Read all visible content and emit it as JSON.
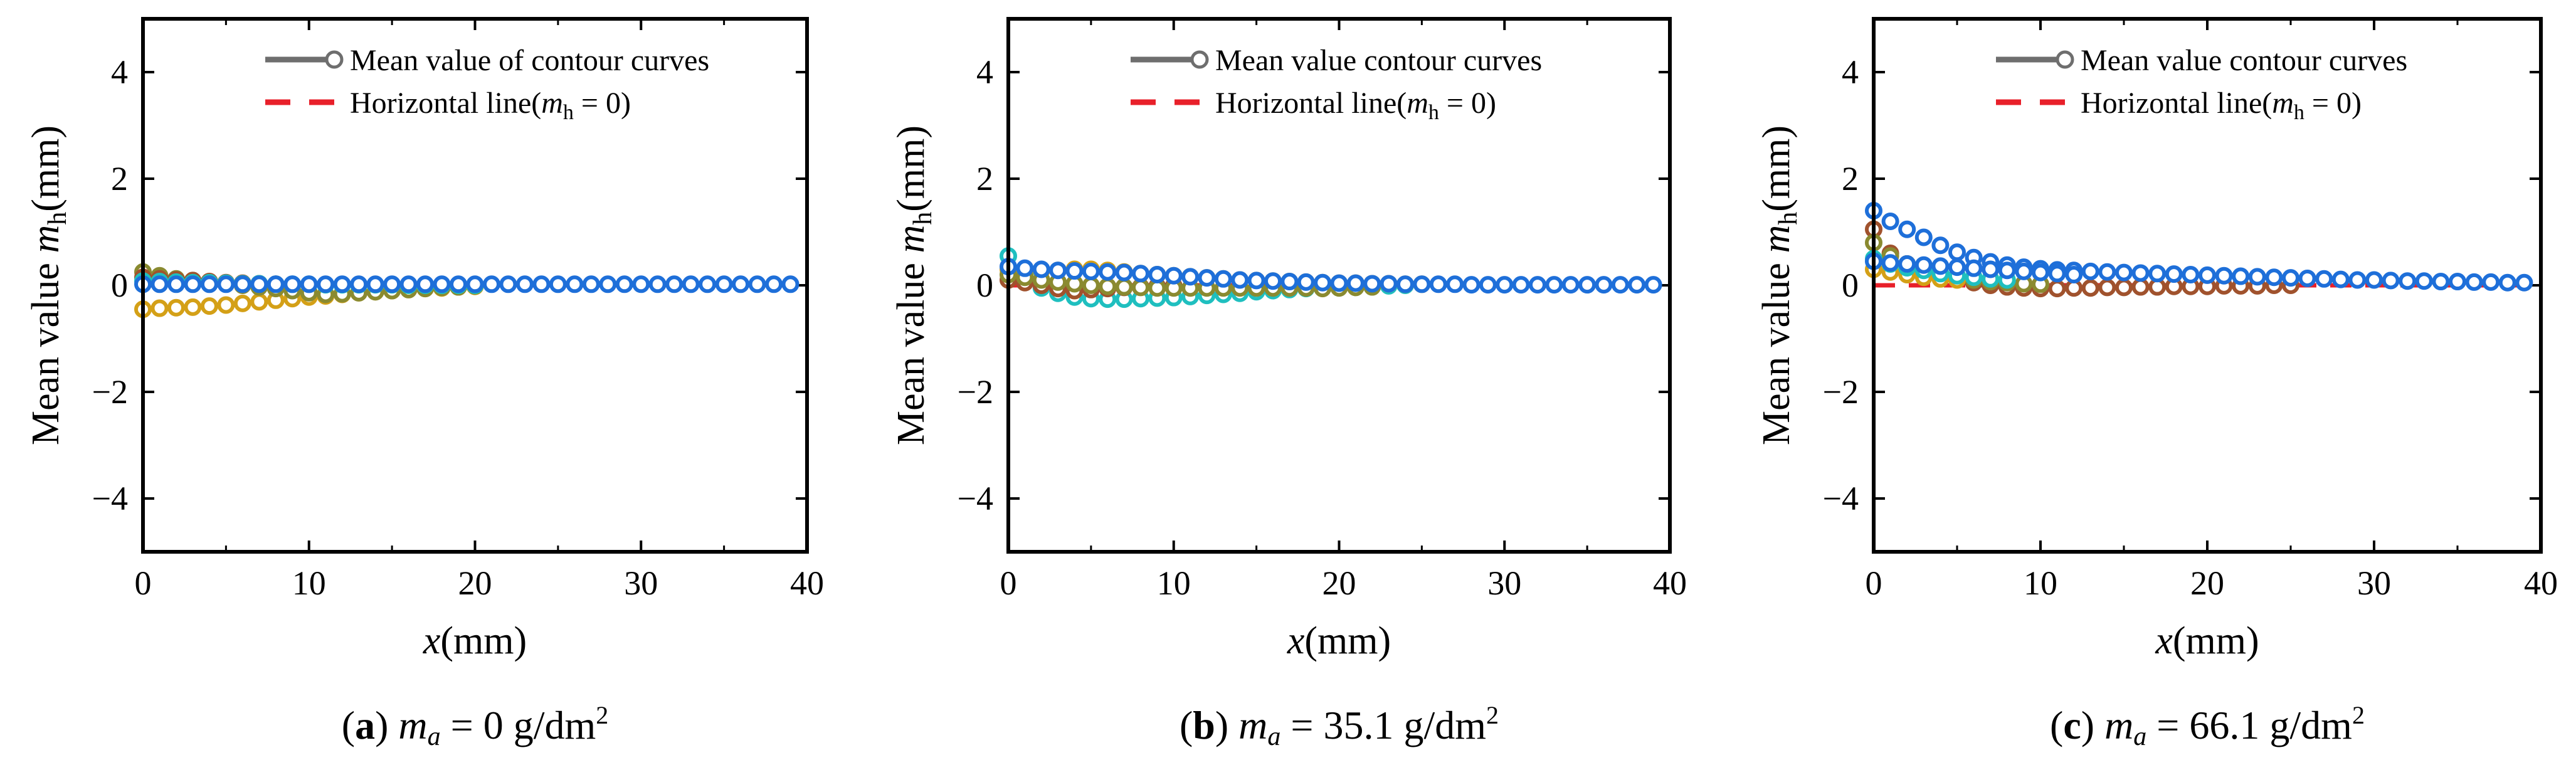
{
  "chart_data": [
    {
      "type": "scatter",
      "panel": "a",
      "caption": {
        "label": "a",
        "symbol": "m",
        "subscript": "a",
        "value": " = 0 g/dm",
        "sup": "2"
      },
      "xlabel": {
        "var": "x",
        "unit": "(mm)"
      },
      "ylabel": {
        "text": "Mean value ",
        "var": "m",
        "sub": "h",
        "unit": "(mm)"
      },
      "xlim": [
        0,
        40
      ],
      "ylim": [
        -5,
        5
      ],
      "xticks": [
        "0",
        "10",
        "20",
        "30",
        "40"
      ],
      "yticks": [
        "−4",
        "−2",
        "0",
        "2",
        "4"
      ],
      "ytick_values": [
        -4,
        -2,
        0,
        2,
        4
      ],
      "xtick_values": [
        0,
        10,
        20,
        30,
        40
      ],
      "legend": {
        "position": "top-right",
        "mean_label": "Mean value of contour curves",
        "hline_text": "Horizontal line(",
        "hline_var": "m",
        "hline_sub": "h",
        "hline_eq": " = 0)"
      },
      "series": [
        {
          "name": "curve-orange",
          "color": "#d4a017",
          "x": [
            0,
            1,
            2,
            3,
            4,
            5,
            6,
            7,
            8,
            9,
            10,
            11,
            12,
            13,
            14,
            15,
            16,
            17,
            18,
            19,
            20
          ],
          "y": [
            -0.45,
            -0.43,
            -0.42,
            -0.41,
            -0.39,
            -0.37,
            -0.34,
            -0.31,
            -0.28,
            -0.25,
            -0.22,
            -0.2,
            -0.17,
            -0.14,
            -0.12,
            -0.1,
            -0.08,
            -0.06,
            -0.05,
            -0.03,
            -0.02
          ]
        },
        {
          "name": "curve-olive",
          "color": "#8a8a30",
          "x": [
            0,
            1,
            2,
            3,
            4,
            5,
            6,
            7,
            8,
            9,
            10,
            11,
            12,
            13,
            14,
            15,
            16,
            17,
            18,
            19,
            20
          ],
          "y": [
            0.25,
            0.18,
            0.12,
            0.09,
            0.06,
            0.03,
            0.0,
            -0.03,
            -0.06,
            -0.1,
            -0.14,
            -0.17,
            -0.16,
            -0.14,
            -0.12,
            -0.1,
            -0.08,
            -0.06,
            -0.04,
            -0.03,
            -0.01
          ]
        },
        {
          "name": "curve-brown",
          "color": "#a0522d",
          "x": [
            0,
            1,
            2,
            3,
            4,
            5,
            6,
            7,
            8
          ],
          "y": [
            0.15,
            0.12,
            0.1,
            0.09,
            0.07,
            0.05,
            0.04,
            0.03,
            0.02
          ]
        },
        {
          "name": "curve-cyan",
          "color": "#1fbfbf",
          "x": [
            0,
            1,
            2,
            3,
            4,
            5,
            6,
            7,
            8,
            9,
            10,
            11,
            12,
            13,
            14,
            15,
            16,
            17,
            18,
            19,
            20
          ],
          "y": [
            0.08,
            0.07,
            0.06,
            0.05,
            0.05,
            0.04,
            0.03,
            0.03,
            0.02,
            0.02,
            0.02,
            0.01,
            0.01,
            0.01,
            0.01,
            0.01,
            0.0,
            0.0,
            0.0,
            0.0,
            0.0
          ]
        },
        {
          "name": "curve-blue",
          "color": "#1e6fd9",
          "x": [
            0,
            1,
            2,
            3,
            4,
            5,
            6,
            7,
            8,
            9,
            10,
            11,
            12,
            13,
            14,
            15,
            16,
            17,
            18,
            19,
            20,
            21,
            22,
            23,
            24,
            25,
            26,
            27,
            28,
            29,
            30,
            31,
            32,
            33,
            34,
            35,
            36,
            37,
            38,
            39
          ],
          "y": [
            0.02,
            0.02,
            0.02,
            0.02,
            0.02,
            0.02,
            0.02,
            0.02,
            0.02,
            0.02,
            0.02,
            0.02,
            0.02,
            0.02,
            0.02,
            0.02,
            0.02,
            0.02,
            0.02,
            0.02,
            0.02,
            0.02,
            0.02,
            0.02,
            0.02,
            0.02,
            0.02,
            0.02,
            0.02,
            0.02,
            0.02,
            0.02,
            0.02,
            0.02,
            0.02,
            0.02,
            0.02,
            0.02,
            0.02,
            0.02
          ]
        }
      ]
    },
    {
      "type": "scatter",
      "panel": "b",
      "caption": {
        "label": "b",
        "symbol": "m",
        "subscript": "a",
        "value": " = 35.1 g/dm",
        "sup": "2"
      },
      "xlabel": {
        "var": "x",
        "unit": "(mm)"
      },
      "ylabel": {
        "text": "Mean value ",
        "var": "m",
        "sub": "h",
        "unit": "(mm)"
      },
      "xlim": [
        0,
        40
      ],
      "ylim": [
        -5,
        5
      ],
      "xticks": [
        "0",
        "10",
        "20",
        "30",
        "40"
      ],
      "yticks": [
        "−4",
        "−2",
        "0",
        "2",
        "4"
      ],
      "ytick_values": [
        -4,
        -2,
        0,
        2,
        4
      ],
      "xtick_values": [
        0,
        10,
        20,
        30,
        40
      ],
      "legend": {
        "position": "top-right",
        "mean_label": "Mean value contour curves",
        "hline_text": "Horizontal line(",
        "hline_var": "m",
        "hline_sub": "h",
        "hline_eq": " = 0)"
      },
      "series": [
        {
          "name": "curve-cyan",
          "color": "#1fbfbf",
          "x": [
            0,
            1,
            2,
            3,
            4,
            5,
            6,
            7,
            8,
            9,
            10,
            11,
            12,
            13,
            14,
            15,
            16,
            17,
            18,
            19,
            20,
            21,
            22,
            23,
            24
          ],
          "y": [
            0.55,
            0.2,
            -0.05,
            -0.15,
            -0.22,
            -0.25,
            -0.26,
            -0.26,
            -0.25,
            -0.24,
            -0.23,
            -0.21,
            -0.19,
            -0.17,
            -0.15,
            -0.12,
            -0.1,
            -0.08,
            -0.06,
            -0.05,
            -0.04,
            -0.03,
            -0.02,
            -0.01,
            0.0
          ]
        },
        {
          "name": "curve-orange",
          "color": "#d4a017",
          "x": [
            0,
            1,
            2,
            3,
            4,
            5,
            6,
            7,
            8,
            9,
            10,
            11,
            12,
            13,
            14,
            15,
            16,
            17,
            18,
            19,
            20,
            21,
            22,
            23,
            24,
            25
          ],
          "y": [
            0.3,
            0.3,
            0.28,
            0.28,
            0.3,
            0.3,
            0.28,
            0.25,
            0.22,
            0.2,
            0.18,
            0.16,
            0.14,
            0.12,
            0.1,
            0.09,
            0.08,
            0.07,
            0.06,
            0.05,
            0.04,
            0.04,
            0.03,
            0.03,
            0.02,
            0.02
          ]
        },
        {
          "name": "curve-brown",
          "color": "#a0522d",
          "x": [
            0,
            1,
            2,
            3,
            4,
            5,
            6,
            7,
            8,
            9,
            10
          ],
          "y": [
            0.1,
            0.05,
            0.0,
            -0.06,
            -0.1,
            -0.08,
            -0.06,
            -0.04,
            -0.03,
            -0.02,
            -0.01
          ]
        },
        {
          "name": "curve-olive",
          "color": "#8a8a30",
          "x": [
            0,
            1,
            2,
            3,
            4,
            5,
            6,
            7,
            8,
            9,
            10,
            11,
            12,
            13,
            14,
            15,
            16,
            17,
            18,
            19,
            20,
            21,
            22
          ],
          "y": [
            0.2,
            0.15,
            0.1,
            0.06,
            0.03,
            0.0,
            -0.02,
            -0.03,
            -0.04,
            -0.05,
            -0.05,
            -0.05,
            -0.05,
            -0.05,
            -0.05,
            -0.05,
            -0.05,
            -0.05,
            -0.05,
            -0.06,
            -0.05,
            -0.04,
            -0.03
          ]
        },
        {
          "name": "curve-blue",
          "color": "#1e6fd9",
          "x": [
            0,
            1,
            2,
            3,
            4,
            5,
            6,
            7,
            8,
            9,
            10,
            11,
            12,
            13,
            14,
            15,
            16,
            17,
            18,
            19,
            20,
            21,
            22,
            23,
            24,
            25,
            26,
            27,
            28,
            29,
            30,
            31,
            32,
            33,
            34,
            35,
            36,
            37,
            38,
            39
          ],
          "y": [
            0.35,
            0.32,
            0.3,
            0.28,
            0.27,
            0.26,
            0.25,
            0.24,
            0.22,
            0.2,
            0.18,
            0.16,
            0.14,
            0.12,
            0.1,
            0.09,
            0.08,
            0.07,
            0.06,
            0.05,
            0.04,
            0.04,
            0.03,
            0.03,
            0.02,
            0.02,
            0.02,
            0.02,
            0.01,
            0.01,
            0.01,
            0.01,
            0.01,
            0.01,
            0.01,
            0.01,
            0.01,
            0.01,
            0.01,
            0.01
          ]
        }
      ]
    },
    {
      "type": "scatter",
      "panel": "c",
      "caption": {
        "label": "c",
        "symbol": "m",
        "subscript": "a",
        "value": " = 66.1 g/dm",
        "sup": "2"
      },
      "xlabel": {
        "var": "x",
        "unit": "(mm)"
      },
      "ylabel": {
        "text": "Mean value ",
        "var": "m",
        "sub": "h",
        "unit": "(mm)"
      },
      "xlim": [
        0,
        40
      ],
      "ylim": [
        -5,
        5
      ],
      "xticks": [
        "0",
        "10",
        "20",
        "30",
        "40"
      ],
      "yticks": [
        "−4",
        "−2",
        "0",
        "2",
        "4"
      ],
      "ytick_values": [
        -4,
        -2,
        0,
        2,
        4
      ],
      "xtick_values": [
        0,
        10,
        20,
        30,
        40
      ],
      "legend": {
        "position": "top-right",
        "mean_label": "Mean value contour curves",
        "hline_text": "Horizontal line(",
        "hline_var": "m",
        "hline_sub": "h",
        "hline_eq": " = 0)"
      },
      "series": [
        {
          "name": "curve-brown",
          "color": "#a0522d",
          "x": [
            0,
            1,
            2,
            3,
            4,
            5,
            6,
            7,
            8,
            9,
            10,
            11,
            12,
            13,
            14,
            15,
            16,
            17,
            18,
            19,
            20,
            21,
            22,
            23,
            24,
            25
          ],
          "y": [
            1.05,
            0.6,
            0.4,
            0.3,
            0.2,
            0.12,
            0.05,
            0.0,
            -0.03,
            -0.05,
            -0.06,
            -0.06,
            -0.05,
            -0.05,
            -0.04,
            -0.04,
            -0.03,
            -0.03,
            -0.02,
            -0.02,
            -0.02,
            -0.01,
            -0.01,
            -0.01,
            0.0,
            0.0
          ]
        },
        {
          "name": "curve-olive",
          "color": "#8a8a30",
          "x": [
            0,
            1,
            2,
            3,
            4,
            5,
            6,
            7,
            8,
            9,
            10
          ],
          "y": [
            0.8,
            0.55,
            0.4,
            0.3,
            0.22,
            0.15,
            0.1,
            0.07,
            0.05,
            0.03,
            0.02
          ]
        },
        {
          "name": "curve-orange",
          "color": "#d4a017",
          "x": [
            0,
            1,
            2,
            3,
            4,
            5
          ],
          "y": [
            0.3,
            0.25,
            0.2,
            0.15,
            0.12,
            0.1
          ]
        },
        {
          "name": "curve-cyan",
          "color": "#1fbfbf",
          "x": [
            0,
            1,
            2,
            3,
            4,
            5,
            6,
            7,
            8
          ],
          "y": [
            0.5,
            0.4,
            0.33,
            0.28,
            0.22,
            0.18,
            0.15,
            0.12,
            0.1
          ]
        },
        {
          "name": "curve-blue-upper",
          "color": "#1e6fd9",
          "x": [
            0,
            1,
            2,
            3,
            4,
            5,
            6,
            7,
            8,
            9,
            10,
            11,
            12,
            13,
            14,
            15,
            16,
            17,
            18,
            19,
            20,
            21,
            22,
            23,
            24,
            25,
            26,
            27,
            28,
            29,
            30,
            31,
            32,
            33,
            34,
            35,
            36,
            37,
            38,
            39
          ],
          "y": [
            1.4,
            1.2,
            1.05,
            0.9,
            0.75,
            0.62,
            0.52,
            0.44,
            0.38,
            0.34,
            0.31,
            0.29,
            0.28,
            0.26,
            0.25,
            0.24,
            0.23,
            0.22,
            0.21,
            0.2,
            0.19,
            0.18,
            0.17,
            0.16,
            0.15,
            0.14,
            0.13,
            0.12,
            0.11,
            0.1,
            0.1,
            0.09,
            0.08,
            0.08,
            0.07,
            0.07,
            0.06,
            0.06,
            0.05,
            0.05
          ]
        },
        {
          "name": "curve-blue-lower",
          "color": "#1e6fd9",
          "x": [
            0,
            1,
            2,
            3,
            4,
            5,
            6,
            7,
            8,
            9,
            10,
            11,
            12
          ],
          "y": [
            0.45,
            0.42,
            0.4,
            0.38,
            0.36,
            0.34,
            0.32,
            0.3,
            0.28,
            0.26,
            0.24,
            0.22,
            0.2
          ]
        }
      ]
    }
  ]
}
